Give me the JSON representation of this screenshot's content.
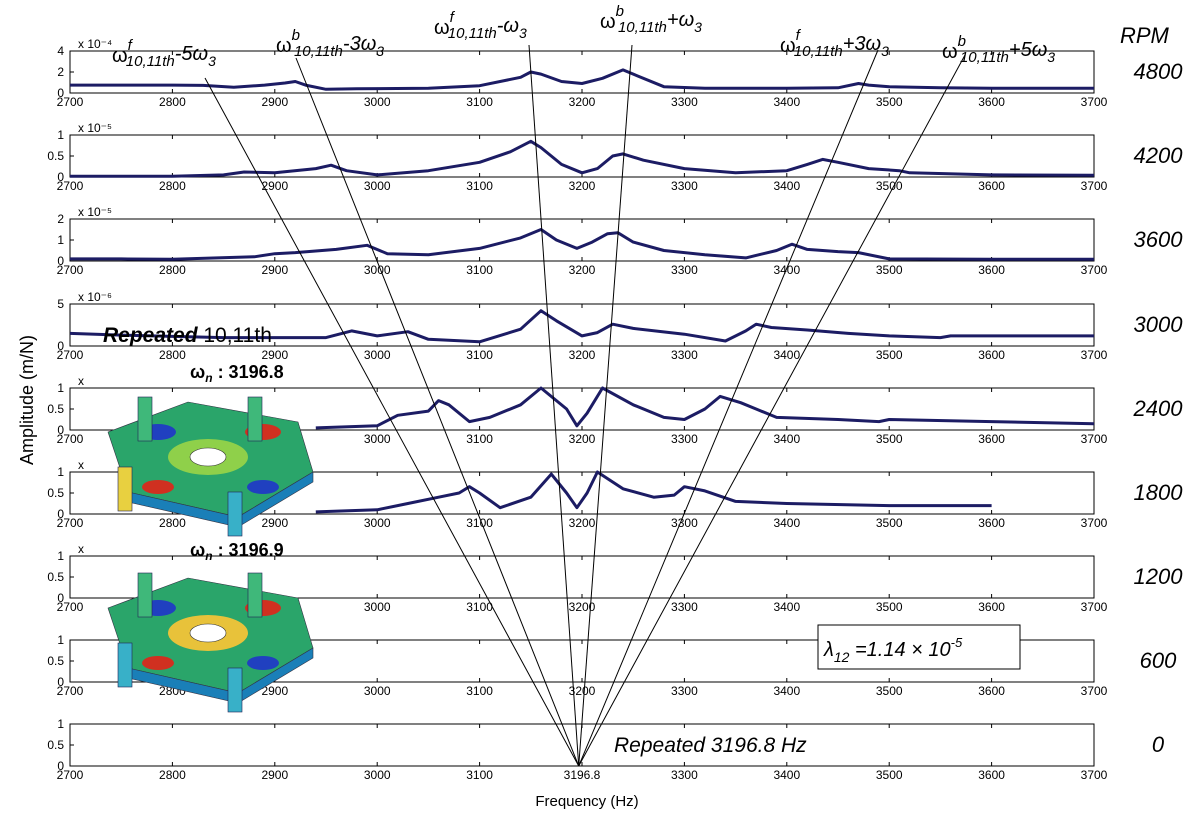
{
  "chart_data": {
    "type": "line",
    "xlabel": "Frequency (Hz)",
    "ylabel": "Amplitude (m/N)",
    "xlim": [
      2700,
      3700
    ],
    "x_ticks": [
      "2700",
      "2800",
      "2900",
      "3000",
      "3100",
      "3200",
      "3300",
      "3400",
      "3500",
      "3600",
      "3700"
    ],
    "x_ticks_bottom": [
      "2700",
      "2800",
      "2900",
      "3000",
      "3100",
      "3196.8",
      "3300",
      "3400",
      "3500",
      "3600",
      "3700"
    ],
    "rpm_header": "RPM",
    "line_color": "#1c1c64",
    "panels": [
      {
        "rpm": "4800",
        "exp": "x 10⁻⁴",
        "yticks": [
          "4",
          "2",
          "0"
        ],
        "ymax": 4,
        "series": [
          [
            2700,
            0.75
          ],
          [
            2800,
            0.75
          ],
          [
            2830,
            0.72
          ],
          [
            2860,
            0.55
          ],
          [
            2890,
            0.75
          ],
          [
            2910,
            0.95
          ],
          [
            2920,
            1.1
          ],
          [
            2930,
            0.75
          ],
          [
            2950,
            0.35
          ],
          [
            2980,
            0.4
          ],
          [
            3050,
            0.45
          ],
          [
            3100,
            0.7
          ],
          [
            3140,
            1.5
          ],
          [
            3150,
            2.0
          ],
          [
            3160,
            1.8
          ],
          [
            3180,
            1.1
          ],
          [
            3200,
            0.9
          ],
          [
            3220,
            1.4
          ],
          [
            3240,
            2.2
          ],
          [
            3255,
            1.6
          ],
          [
            3280,
            0.6
          ],
          [
            3320,
            0.45
          ],
          [
            3400,
            0.45
          ],
          [
            3450,
            0.5
          ],
          [
            3470,
            0.9
          ],
          [
            3480,
            0.75
          ],
          [
            3500,
            0.6
          ],
          [
            3550,
            0.5
          ],
          [
            3600,
            0.45
          ],
          [
            3700,
            0.45
          ]
        ]
      },
      {
        "rpm": "4200",
        "exp": "x 10⁻⁵",
        "yticks": [
          "1",
          "0.5",
          "0"
        ],
        "ymax": 1,
        "series": [
          [
            2700,
            0.02
          ],
          [
            2800,
            0.02
          ],
          [
            2850,
            0.05
          ],
          [
            2870,
            0.12
          ],
          [
            2900,
            0.1
          ],
          [
            2940,
            0.2
          ],
          [
            2955,
            0.28
          ],
          [
            2970,
            0.15
          ],
          [
            3000,
            0.05
          ],
          [
            3050,
            0.15
          ],
          [
            3100,
            0.35
          ],
          [
            3130,
            0.6
          ],
          [
            3150,
            0.85
          ],
          [
            3160,
            0.7
          ],
          [
            3180,
            0.3
          ],
          [
            3200,
            0.1
          ],
          [
            3215,
            0.2
          ],
          [
            3230,
            0.5
          ],
          [
            3240,
            0.55
          ],
          [
            3260,
            0.4
          ],
          [
            3300,
            0.2
          ],
          [
            3350,
            0.1
          ],
          [
            3400,
            0.15
          ],
          [
            3420,
            0.3
          ],
          [
            3435,
            0.42
          ],
          [
            3450,
            0.35
          ],
          [
            3480,
            0.2
          ],
          [
            3510,
            0.15
          ],
          [
            3520,
            0.1
          ],
          [
            3600,
            0.05
          ],
          [
            3700,
            0.04
          ]
        ]
      },
      {
        "rpm": "3600",
        "exp": "x 10⁻⁵",
        "yticks": [
          "2",
          "1",
          "0"
        ],
        "ymax": 2,
        "series": [
          [
            2700,
            0.1
          ],
          [
            2750,
            0.1
          ],
          [
            2800,
            0.08
          ],
          [
            2880,
            0.2
          ],
          [
            2900,
            0.35
          ],
          [
            2920,
            0.4
          ],
          [
            2960,
            0.55
          ],
          [
            2990,
            0.75
          ],
          [
            3010,
            0.35
          ],
          [
            3050,
            0.3
          ],
          [
            3100,
            0.6
          ],
          [
            3140,
            1.1
          ],
          [
            3160,
            1.5
          ],
          [
            3175,
            1.0
          ],
          [
            3195,
            0.6
          ],
          [
            3210,
            0.9
          ],
          [
            3225,
            1.3
          ],
          [
            3235,
            1.35
          ],
          [
            3250,
            0.9
          ],
          [
            3280,
            0.5
          ],
          [
            3320,
            0.3
          ],
          [
            3360,
            0.15
          ],
          [
            3390,
            0.5
          ],
          [
            3405,
            0.8
          ],
          [
            3420,
            0.55
          ],
          [
            3450,
            0.45
          ],
          [
            3470,
            0.4
          ],
          [
            3500,
            0.1
          ],
          [
            3600,
            0.08
          ],
          [
            3700,
            0.08
          ]
        ]
      },
      {
        "rpm": "3000",
        "exp": "x 10⁻⁶",
        "yticks": [
          "5",
          "0"
        ],
        "ymax": 5,
        "series": [
          [
            2700,
            1.5
          ],
          [
            2750,
            1.3
          ],
          [
            2850,
            1.0
          ],
          [
            2950,
            1.0
          ],
          [
            2975,
            1.8
          ],
          [
            3000,
            1.2
          ],
          [
            3030,
            1.7
          ],
          [
            3050,
            0.8
          ],
          [
            3100,
            0.5
          ],
          [
            3140,
            2.0
          ],
          [
            3160,
            4.2
          ],
          [
            3175,
            3.0
          ],
          [
            3200,
            1.2
          ],
          [
            3215,
            1.6
          ],
          [
            3230,
            2.6
          ],
          [
            3250,
            2.1
          ],
          [
            3300,
            1.4
          ],
          [
            3340,
            0.6
          ],
          [
            3360,
            1.8
          ],
          [
            3370,
            2.6
          ],
          [
            3385,
            2.2
          ],
          [
            3420,
            1.9
          ],
          [
            3460,
            1.5
          ],
          [
            3500,
            1.2
          ],
          [
            3550,
            1.0
          ],
          [
            3560,
            1.2
          ],
          [
            3600,
            1.2
          ],
          [
            3700,
            1.2
          ]
        ]
      },
      {
        "rpm": "2400",
        "exp": "x",
        "yticks": [
          "1",
          "0.5",
          "0"
        ],
        "ymax": 1,
        "series": [
          [
            2940,
            0.05
          ],
          [
            3000,
            0.1
          ],
          [
            3020,
            0.35
          ],
          [
            3050,
            0.45
          ],
          [
            3060,
            0.7
          ],
          [
            3070,
            0.6
          ],
          [
            3090,
            0.2
          ],
          [
            3110,
            0.3
          ],
          [
            3140,
            0.6
          ],
          [
            3160,
            1.0
          ],
          [
            3185,
            0.5
          ],
          [
            3195,
            0.1
          ],
          [
            3205,
            0.4
          ],
          [
            3220,
            1.0
          ],
          [
            3250,
            0.6
          ],
          [
            3280,
            0.3
          ],
          [
            3300,
            0.25
          ],
          [
            3320,
            0.5
          ],
          [
            3335,
            0.8
          ],
          [
            3355,
            0.65
          ],
          [
            3370,
            0.5
          ],
          [
            3390,
            0.3
          ],
          [
            3450,
            0.25
          ],
          [
            3490,
            0.2
          ],
          [
            3500,
            0.25
          ],
          [
            3600,
            0.2
          ],
          [
            3700,
            0.15
          ]
        ]
      },
      {
        "rpm": "1800",
        "exp": "x",
        "yticks": [
          "1",
          "0.5",
          "0"
        ],
        "ymax": 1,
        "series": [
          [
            2940,
            0.05
          ],
          [
            3000,
            0.1
          ],
          [
            3030,
            0.25
          ],
          [
            3060,
            0.4
          ],
          [
            3080,
            0.5
          ],
          [
            3090,
            0.65
          ],
          [
            3100,
            0.5
          ],
          [
            3120,
            0.15
          ],
          [
            3150,
            0.4
          ],
          [
            3170,
            0.95
          ],
          [
            3185,
            0.5
          ],
          [
            3195,
            0.15
          ],
          [
            3205,
            0.5
          ],
          [
            3215,
            1.0
          ],
          [
            3240,
            0.6
          ],
          [
            3270,
            0.4
          ],
          [
            3290,
            0.45
          ],
          [
            3300,
            0.65
          ],
          [
            3320,
            0.55
          ],
          [
            3350,
            0.3
          ],
          [
            3400,
            0.25
          ],
          [
            3500,
            0.2
          ],
          [
            3600,
            0.2
          ]
        ]
      },
      {
        "rpm": "1200",
        "exp": "x",
        "yticks": [
          "1",
          "0.5",
          "0"
        ],
        "ymax": 1,
        "series": []
      },
      {
        "rpm": "600",
        "exp": "",
        "yticks": [
          "1",
          "0.5",
          "0"
        ],
        "ymax": 1,
        "series": []
      },
      {
        "rpm": "0",
        "exp": "",
        "yticks": [
          "1",
          "0.5",
          "0"
        ],
        "ymax": 1,
        "series": []
      }
    ]
  },
  "headers": [
    {
      "sup": "f",
      "base": "10,11th",
      "rest": "-5ω",
      "sub": "3"
    },
    {
      "sup": "b",
      "base": "10,11th",
      "rest": "-3ω",
      "sub": "3"
    },
    {
      "sup": "f",
      "base": "10,11th",
      "rest": "-ω",
      "sub": "3"
    },
    {
      "sup": "b",
      "base": "10,11th",
      "rest": "+ω",
      "sub": "3"
    },
    {
      "sup": "f",
      "base": "10,11th",
      "rest": "+3ω",
      "sub": "3"
    },
    {
      "sup": "b",
      "base": "10,11th",
      "rest": "+5ω",
      "sub": "3"
    }
  ],
  "annotations": {
    "repeated_label_italic": "Repeated",
    "repeated_label_rest": " 10,11th",
    "omega_n_1_value": " : 3196.8",
    "omega_n_2_value": " : 3196.9",
    "lambda_label": "λ",
    "lambda_sub": "12",
    "lambda_value": " =1.14 × 10",
    "lambda_exp": "-5",
    "repeated_hz": "Repeated 3196.8 Hz"
  }
}
